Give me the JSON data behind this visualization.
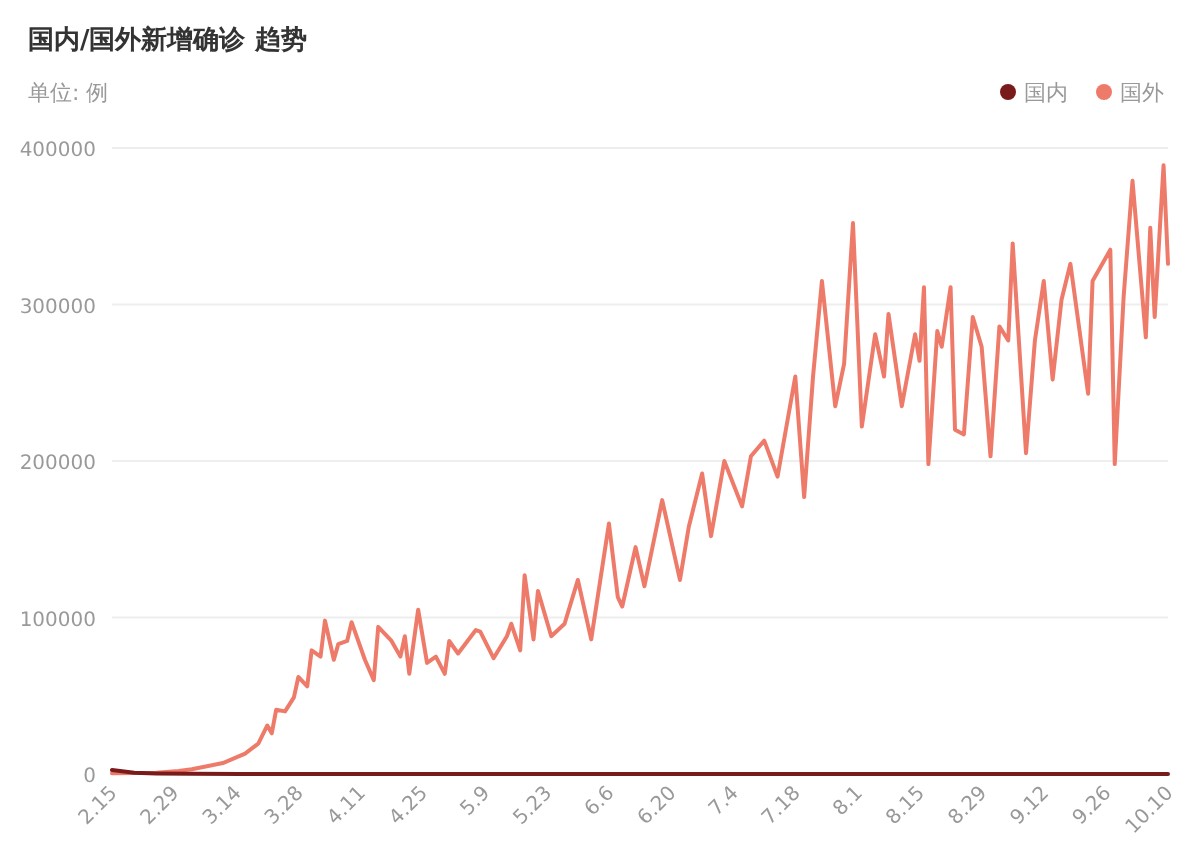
{
  "chart_data": {
    "type": "line",
    "title": "国内/国外新增确诊 趋势",
    "ylabel": "单位: 例",
    "xlim": [
      "--02-15",
      "--10-10"
    ],
    "xticks": [
      {
        "value": "--02-15",
        "label": "2.15"
      },
      {
        "value": "--02-29",
        "label": "2.29"
      },
      {
        "value": "--03-14",
        "label": "3.14"
      },
      {
        "value": "--03-28",
        "label": "3.28"
      },
      {
        "value": "--04-11",
        "label": "4.11"
      },
      {
        "value": "--04-25",
        "label": "4.25"
      },
      {
        "value": "--05-09",
        "label": "5.9"
      },
      {
        "value": "--05-23",
        "label": "5.23"
      },
      {
        "value": "--06-06",
        "label": "6.6"
      },
      {
        "value": "--06-20",
        "label": "6.20"
      },
      {
        "value": "--07-04",
        "label": "7.4"
      },
      {
        "value": "--07-18",
        "label": "7.18"
      },
      {
        "value": "--08-01",
        "label": "8.1"
      },
      {
        "value": "--08-15",
        "label": "8.15"
      },
      {
        "value": "--08-29",
        "label": "8.29"
      },
      {
        "value": "--09-12",
        "label": "9.12"
      },
      {
        "value": "--09-26",
        "label": "9.26"
      },
      {
        "value": "--10-10",
        "label": "10.10"
      }
    ],
    "ylim": [
      0,
      400000
    ],
    "yticks": [
      0,
      100000,
      200000,
      300000,
      400000
    ],
    "grid": "y",
    "legend": "top right",
    "series": [
      {
        "name": "国内",
        "color": "#7a1b1b",
        "x": [
          "--02-15",
          "--02-20",
          "--02-25",
          "--03-04",
          "--03-15",
          "--10-10"
        ],
        "values": [
          2500,
          800,
          400,
          150,
          20,
          30
        ]
      },
      {
        "name": "国外",
        "color": "#ee7b6a",
        "x": [
          "--02-15",
          "--02-25",
          "--03-01",
          "--03-04",
          "--03-11",
          "--03-16",
          "--03-19",
          "--03-21",
          "--03-22",
          "--03-23",
          "--03-25",
          "--03-27",
          "--03-28",
          "--03-30",
          "--03-31",
          "--04-02",
          "--04-03",
          "--04-05",
          "--04-06",
          "--04-08",
          "--04-09",
          "--04-12",
          "--04-14",
          "--04-15",
          "--04-18",
          "--04-20",
          "--04-21",
          "--04-22",
          "--04-24",
          "--04-26",
          "--04-28",
          "--04-30",
          "--05-01",
          "--05-03",
          "--05-07",
          "--05-08",
          "--05-11",
          "--05-14",
          "--05-15",
          "--05-17",
          "--05-18",
          "--05-20",
          "--05-21",
          "--05-24",
          "--05-27",
          "--05-30",
          "--06-02",
          "--06-06",
          "--06-08",
          "--06-09",
          "--06-12",
          "--06-14",
          "--06-18",
          "--06-22",
          "--06-24",
          "--06-27",
          "--06-29",
          "--07-02",
          "--07-06",
          "--07-08",
          "--07-11",
          "--07-14",
          "--07-18",
          "--07-20",
          "--07-22",
          "--07-24",
          "--07-27",
          "--07-29",
          "--07-31",
          "--08-02",
          "--08-05",
          "--08-07",
          "--08-08",
          "--08-11",
          "--08-14",
          "--08-15",
          "--08-16",
          "--08-17",
          "--08-19",
          "--08-20",
          "--08-22",
          "--08-23",
          "--08-25",
          "--08-27",
          "--08-29",
          "--08-31",
          "--09-02",
          "--09-04",
          "--09-05",
          "--09-08",
          "--09-10",
          "--09-12",
          "--09-14",
          "--09-16",
          "--09-18",
          "--09-22",
          "--09-23",
          "--09-27",
          "--09-28",
          "--09-30",
          "--10-02",
          "--10-05",
          "--10-06",
          "--10-07",
          "--10-09",
          "--10-10"
        ],
        "values": [
          500,
          800,
          2000,
          3000,
          7000,
          13000,
          19500,
          31000,
          26000,
          41000,
          40000,
          49000,
          62000,
          56000,
          79000,
          75000,
          98000,
          73000,
          83000,
          85000,
          97000,
          73000,
          60000,
          94000,
          85000,
          75000,
          88000,
          64000,
          105000,
          71000,
          75000,
          64000,
          85000,
          77000,
          92000,
          91000,
          74000,
          88000,
          96000,
          79000,
          127000,
          86000,
          117000,
          88000,
          96000,
          124000,
          86000,
          160000,
          113000,
          107000,
          145000,
          120000,
          175000,
          124000,
          158000,
          192000,
          152000,
          200000,
          171000,
          203000,
          213000,
          190000,
          254000,
          177000,
          254000,
          315000,
          235000,
          262000,
          352000,
          222000,
          281000,
          254000,
          294000,
          235000,
          281000,
          264000,
          311000,
          198000,
          283000,
          273000,
          311000,
          220000,
          217000,
          292000,
          273000,
          203000,
          286000,
          277000,
          339000,
          205000,
          277000,
          315000,
          252000,
          303000,
          326000,
          243000,
          315000,
          335000,
          198000,
          305000,
          379000,
          279000,
          349000,
          292000,
          389000,
          326000
        ]
      }
    ]
  }
}
